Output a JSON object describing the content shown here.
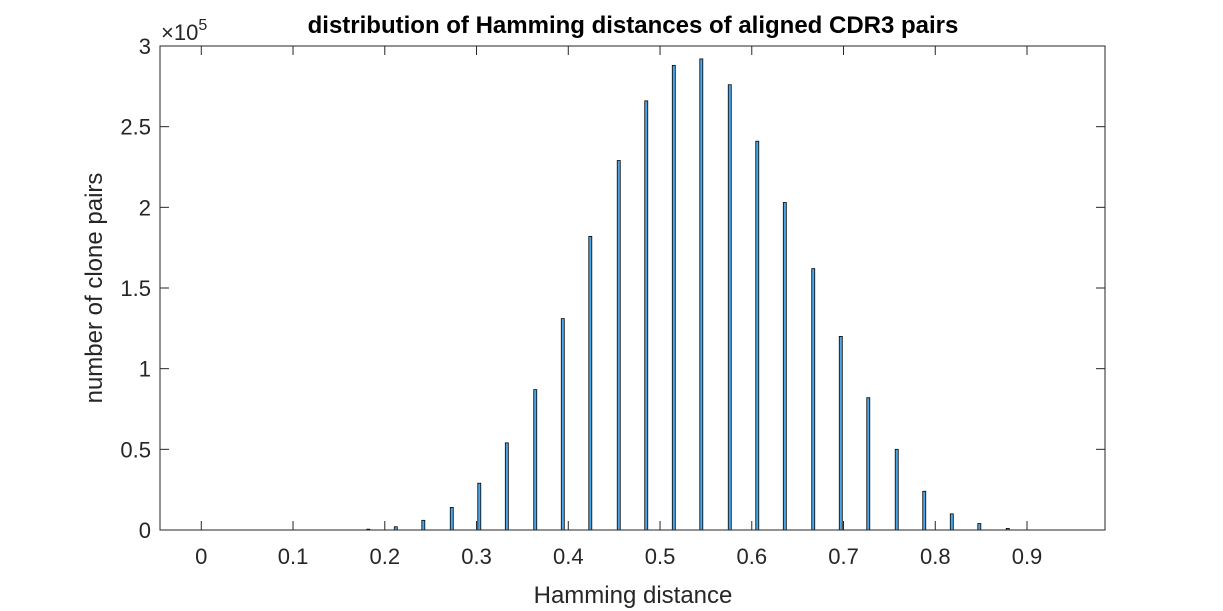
{
  "chart_data": {
    "type": "bar",
    "title": "distribution of Hamming distances of aligned CDR3 pairs",
    "xlabel": "Hamming distance",
    "ylabel": "number of clone pairs",
    "y_exponent_base": "×10",
    "y_exponent_power": "5",
    "xlim": [
      -0.045,
      0.985
    ],
    "ylim": [
      0,
      3
    ],
    "x_ticks": [
      0,
      0.1,
      0.2,
      0.3,
      0.4,
      0.5,
      0.6,
      0.7,
      0.8,
      0.9
    ],
    "x_tick_labels": [
      "0",
      "0.1",
      "0.2",
      "0.3",
      "0.4",
      "0.5",
      "0.6",
      "0.7",
      "0.8",
      "0.9"
    ],
    "y_ticks": [
      0,
      0.5,
      1,
      1.5,
      2,
      2.5,
      3
    ],
    "y_tick_labels": [
      "0",
      "0.5",
      "1",
      "1.5",
      "2",
      "2.5",
      "3"
    ],
    "y_units_note": "values in units of 10^5 clone pairs",
    "bar_color": "#4da6e8",
    "bar_edge_color": "#000000",
    "x": [
      0.182,
      0.212,
      0.242,
      0.273,
      0.303,
      0.333,
      0.364,
      0.394,
      0.424,
      0.455,
      0.485,
      0.515,
      0.545,
      0.576,
      0.606,
      0.636,
      0.667,
      0.697,
      0.727,
      0.758,
      0.788,
      0.818,
      0.848,
      0.879
    ],
    "values": [
      0.005,
      0.02,
      0.06,
      0.14,
      0.29,
      0.54,
      0.87,
      1.31,
      1.82,
      2.29,
      2.66,
      2.88,
      2.92,
      2.76,
      2.41,
      2.03,
      1.62,
      1.2,
      0.82,
      0.5,
      0.24,
      0.1,
      0.04,
      0.01
    ],
    "grid": false,
    "legend": "none"
  }
}
